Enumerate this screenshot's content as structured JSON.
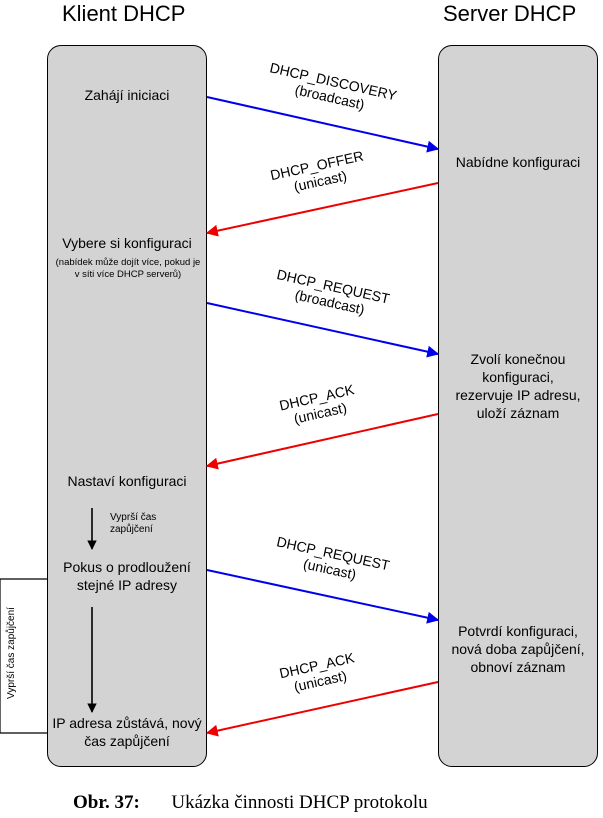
{
  "headers": {
    "client": "Klient DHCP",
    "server": "Server DHCP"
  },
  "client_steps": {
    "start": "Zahájí iniciaci",
    "choose": "Vybere si konfiguraci",
    "choose_note": "(nabídek může dojít více, pokud je v síti více DHCP serverů)",
    "configure": "Nastaví konfiguraci",
    "renew_attempt": "Pokus o prodloužení stejné IP adresy",
    "keep_ip": "IP adresa zůstává, nový čas zapůjčení"
  },
  "server_steps": {
    "offer": "Nabídne konfiguraci",
    "reserve": "Zvolí konečnou konfiguraci, rezervuje IP adresu, uloží záznam",
    "confirm": "Potvrdí konfiguraci, nová doba zapůjčení, obnoví záznam"
  },
  "timers": {
    "lease_expired_inner": "Vyprší čas zapůjčení",
    "lease_expired_side": "Vyprší čas zapůjčení"
  },
  "messages": [
    {
      "name": "DHCP_DISCOVERY",
      "mode": "(broadcast)",
      "direction": "client-to-server",
      "color": "#0000ee"
    },
    {
      "name": "DHCP_OFFER",
      "mode": "(unicast)",
      "direction": "server-to-client",
      "color": "#ee0000"
    },
    {
      "name": "DHCP_REQUEST",
      "mode": "(broadcast)",
      "direction": "client-to-server",
      "color": "#0000ee"
    },
    {
      "name": "DHCP_ACK",
      "mode": "(unicast)",
      "direction": "server-to-client",
      "color": "#ee0000"
    },
    {
      "name": "DHCP_REQUEST",
      "mode": "(unicast)",
      "direction": "client-to-server",
      "color": "#0000ee"
    },
    {
      "name": "DHCP_ACK",
      "mode": "(unicast)",
      "direction": "server-to-client",
      "color": "#ee0000"
    }
  ],
  "caption": {
    "label": "Obr. 37:",
    "text": "Ukázka činnosti DHCP protokolu"
  }
}
